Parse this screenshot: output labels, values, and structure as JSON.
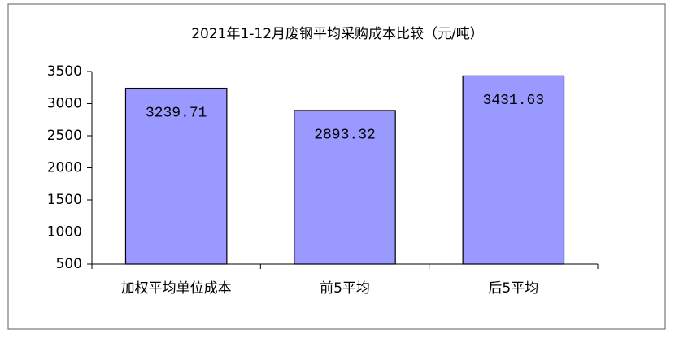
{
  "chart_data": {
    "type": "bar",
    "title": "2021年1-12月废钢平均采购成本比较（元/吨）",
    "categories": [
      "加权平均单位成本",
      "前5平均",
      "后5平均"
    ],
    "values": [
      3239.71,
      2893.32,
      3431.63
    ],
    "color": "#9999ff",
    "ylim": [
      500,
      3500
    ],
    "yticks": [
      500,
      1000,
      1500,
      2000,
      2500,
      3000,
      3500
    ],
    "grid": false
  }
}
